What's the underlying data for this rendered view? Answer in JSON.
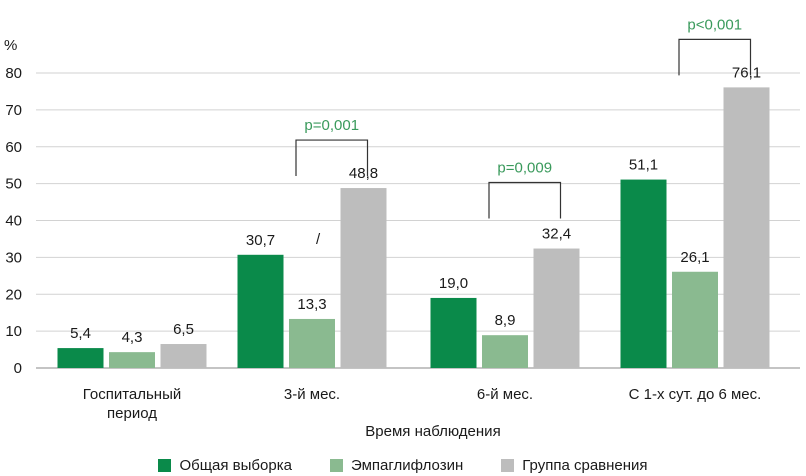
{
  "chart_data": {
    "type": "bar",
    "title": "",
    "ylabel": "%",
    "xlabel": "Время  наблюдения",
    "ylim": [
      0,
      80
    ],
    "yticks": [
      0,
      10,
      20,
      30,
      40,
      50,
      60,
      70,
      80
    ],
    "categories": [
      [
        "Госпитальный",
        "период"
      ],
      [
        "3-й мес."
      ],
      [
        "6-й мес."
      ],
      [
        "С 1-х сут. до 6 мес."
      ]
    ],
    "series": [
      {
        "name": "Общая выборка",
        "color": "#0a8a4a",
        "values": [
          5.4,
          30.7,
          19.0,
          51.1
        ],
        "labels": [
          "5,4",
          "30,7",
          "19,0",
          "51,1"
        ]
      },
      {
        "name": "Эмпаглифлозин",
        "color": "#8aba90",
        "values": [
          4.3,
          13.3,
          8.9,
          26.1
        ],
        "labels": [
          "4,3",
          "13,3",
          "8,9",
          "26,1"
        ]
      },
      {
        "name": "Группа сравнения",
        "color": "#bdbdbd",
        "values": [
          6.5,
          48.8,
          32.4,
          76.1
        ],
        "labels": [
          "6,5",
          "48,8",
          "32,4",
          "76,1"
        ]
      }
    ],
    "annotations": [
      {
        "category_index": 1,
        "text": "p=0,001"
      },
      {
        "category_index": 2,
        "text": "p=0,009"
      },
      {
        "category_index": 3,
        "text": "p<0,001"
      }
    ],
    "stray_mark": "/"
  }
}
